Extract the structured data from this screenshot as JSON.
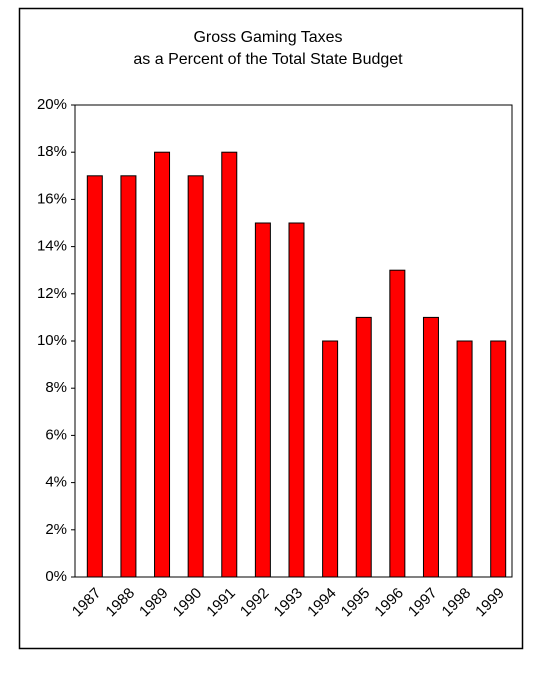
{
  "chart_data": {
    "type": "bar",
    "title": "Gross Gaming Taxes",
    "subtitle": "as a Percent of the Total State Budget",
    "categories": [
      "1987",
      "1988",
      "1989",
      "1990",
      "1991",
      "1992",
      "1993",
      "1994",
      "1995",
      "1996",
      "1997",
      "1998",
      "1999"
    ],
    "values": [
      17,
      17,
      18,
      17,
      18,
      15,
      15,
      10,
      11,
      13,
      11,
      10,
      10
    ],
    "color": "#ff0000",
    "ylim": [
      0,
      20
    ],
    "yticks": [
      {
        "value": 0,
        "label": "0%"
      },
      {
        "value": 2,
        "label": "2%"
      },
      {
        "value": 4,
        "label": "4%"
      },
      {
        "value": 6,
        "label": "6%"
      },
      {
        "value": 8,
        "label": "8%"
      },
      {
        "value": 10,
        "label": "10%"
      },
      {
        "value": 12,
        "label": "12%"
      },
      {
        "value": 14,
        "label": "14%"
      },
      {
        "value": 16,
        "label": "16%"
      },
      {
        "value": 18,
        "label": "18%"
      },
      {
        "value": 20,
        "label": "20%"
      }
    ],
    "grid": false
  }
}
